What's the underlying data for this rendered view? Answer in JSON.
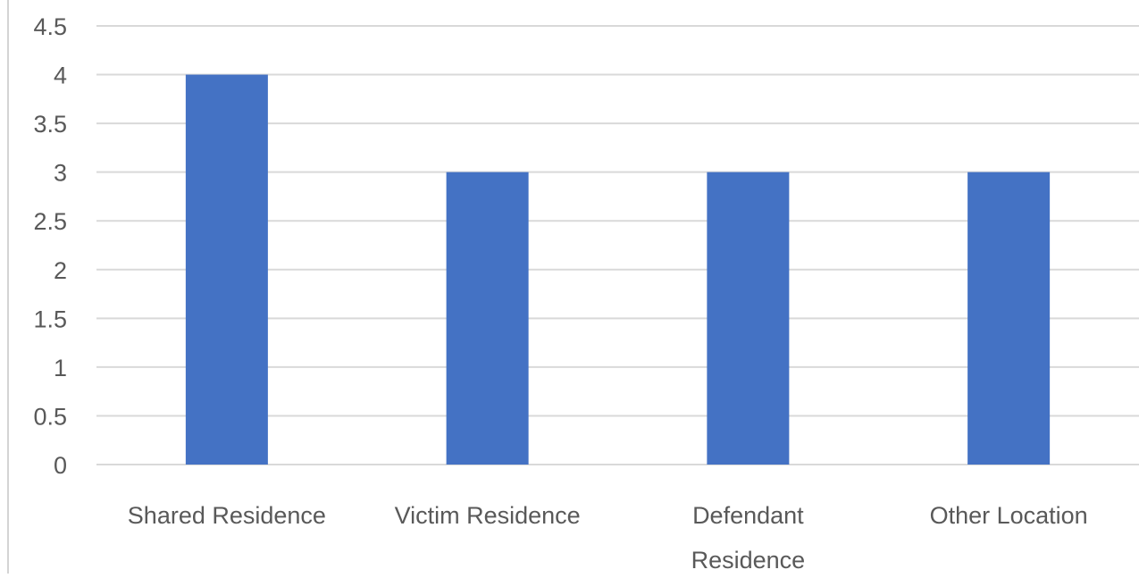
{
  "chart_data": {
    "type": "bar",
    "categories": [
      "Shared Residence",
      "Victim Residence",
      "Defendant Residence",
      "Other Location"
    ],
    "category_lines": [
      [
        "Shared Residence"
      ],
      [
        "Victim Residence"
      ],
      [
        "Defendant",
        "Residence"
      ],
      [
        "Other Location"
      ]
    ],
    "values": [
      4,
      3,
      3,
      3
    ],
    "title": "",
    "xlabel": "",
    "ylabel": "",
    "ylim": [
      0,
      4.5
    ],
    "yticks": [
      "0",
      "0.5",
      "1",
      "1.5",
      "2",
      "2.5",
      "3",
      "3.5",
      "4",
      "4.5"
    ],
    "grid": true,
    "legend": "none",
    "colors": {
      "bar": "#4472C4",
      "grid": "#d9d9d9",
      "text": "#595959"
    }
  }
}
